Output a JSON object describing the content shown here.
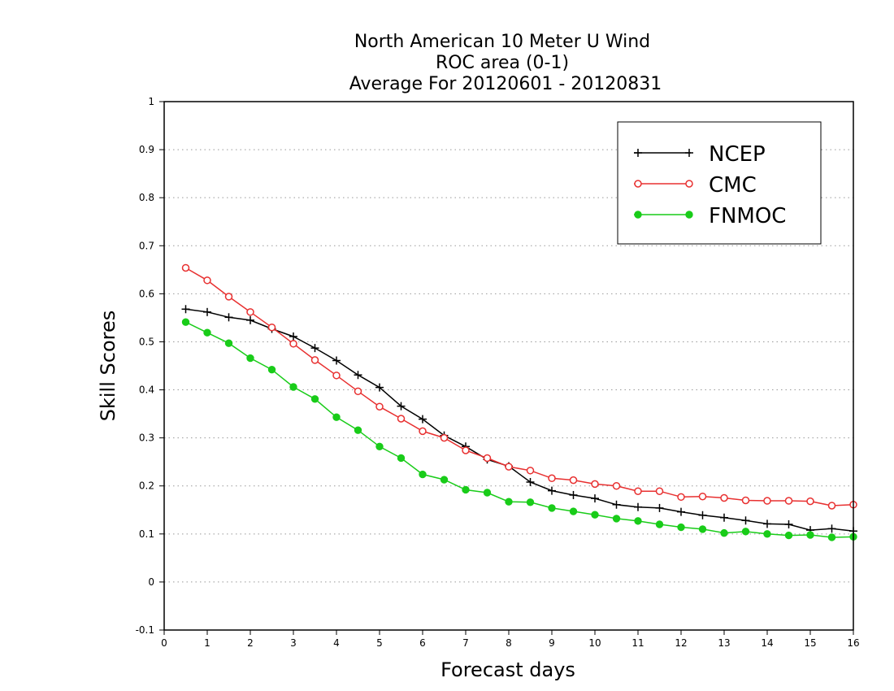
{
  "chart_data": {
    "type": "line",
    "title_lines": [
      "North American 10 Meter U Wind",
      "ROC area (0-1)",
      "Average For 20120601 - 20120831"
    ],
    "xlabel": "Forecast days",
    "ylabel": "Skill Scores",
    "xlim": [
      0,
      16
    ],
    "ylim": [
      -0.1,
      1
    ],
    "x_ticks": [
      0,
      1,
      2,
      3,
      4,
      5,
      6,
      7,
      8,
      9,
      10,
      11,
      12,
      13,
      14,
      15,
      16
    ],
    "x_tick_labels": [
      "0",
      "1",
      "2",
      "3",
      "4",
      "5",
      "6",
      "7",
      "8",
      "9",
      "10",
      "11",
      "12",
      "13",
      "14",
      "15",
      "16"
    ],
    "y_ticks": [
      -0.1,
      0,
      0.1,
      0.2,
      0.3,
      0.4,
      0.5,
      0.6,
      0.7,
      0.8,
      0.9,
      1
    ],
    "y_tick_labels": [
      "-0.1",
      "0",
      "0.1",
      "0.2",
      "0.3",
      "0.4",
      "0.5",
      "0.6",
      "0.7",
      "0.8",
      "0.9",
      "1"
    ],
    "horizontal_grid": "dotted",
    "legend_position": "top-right",
    "x": [
      0.5,
      1,
      1.5,
      2,
      2.5,
      3,
      3.5,
      4,
      4.5,
      5,
      5.5,
      6,
      6.5,
      7,
      7.5,
      8,
      8.5,
      9,
      9.5,
      10,
      10.5,
      11,
      11.5,
      12,
      12.5,
      13,
      13.5,
      14,
      14.5,
      15,
      15.5,
      16
    ],
    "series": [
      {
        "name": "NCEP",
        "color": "#000000",
        "marker": "plus",
        "values": [
          0.568,
          0.562,
          0.551,
          0.545,
          0.527,
          0.511,
          0.487,
          0.461,
          0.431,
          0.405,
          0.366,
          0.339,
          0.305,
          0.282,
          0.255,
          0.241,
          0.208,
          0.19,
          0.181,
          0.174,
          0.161,
          0.156,
          0.154,
          0.146,
          0.139,
          0.134,
          0.128,
          0.121,
          0.12,
          0.108,
          0.111,
          0.106
        ]
      },
      {
        "name": "CMC",
        "color": "#e83030",
        "marker": "open-circle",
        "values": [
          0.654,
          0.628,
          0.594,
          0.562,
          0.53,
          0.496,
          0.462,
          0.43,
          0.397,
          0.365,
          0.34,
          0.314,
          0.3,
          0.274,
          0.258,
          0.24,
          0.232,
          0.216,
          0.212,
          0.204,
          0.2,
          0.189,
          0.189,
          0.177,
          0.178,
          0.175,
          0.17,
          0.169,
          0.169,
          0.168,
          0.159,
          0.161
        ]
      },
      {
        "name": "FNMOC",
        "color": "#19cc19",
        "marker": "filled-circle",
        "values": [
          0.541,
          0.519,
          0.497,
          0.466,
          0.442,
          0.406,
          0.381,
          0.343,
          0.316,
          0.282,
          0.258,
          0.224,
          0.213,
          0.192,
          0.186,
          0.167,
          0.166,
          0.154,
          0.147,
          0.14,
          0.132,
          0.127,
          0.12,
          0.114,
          0.11,
          0.102,
          0.105,
          0.1,
          0.097,
          0.098,
          0.093,
          0.094
        ]
      }
    ]
  }
}
